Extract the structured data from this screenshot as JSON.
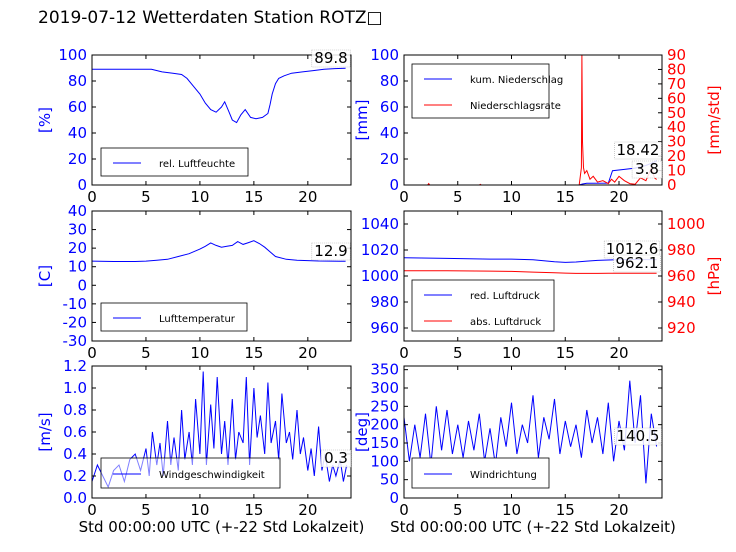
{
  "figure": {
    "title": "2019-07-12 Wetterdaten Station ROTZ□"
  },
  "chart_data": [
    {
      "type": "line",
      "id": "humidity",
      "ylabel": "[%]",
      "xlim": [
        0,
        24
      ],
      "ylim": [
        0,
        100
      ],
      "xticks": [
        0,
        5,
        10,
        15,
        20
      ],
      "yticks": [
        0,
        20,
        40,
        60,
        80,
        100
      ],
      "legend_position": "lower-left",
      "value_label": "89.8",
      "series": [
        {
          "name": "rel. Luftfeuchte",
          "color": "#0000ff",
          "x": [
            0,
            2,
            4,
            5.5,
            6.5,
            7.5,
            8.3,
            8.8,
            9.4,
            10,
            10.5,
            11,
            11.5,
            12,
            12.3,
            12.7,
            13,
            13.4,
            13.8,
            14.2,
            14.7,
            15.2,
            15.8,
            16.3,
            16.5,
            16.7,
            17,
            17.3,
            17.8,
            18.5,
            19.5,
            20.5,
            21.5,
            22.5,
            23.5
          ],
          "y": [
            89,
            89,
            89,
            89,
            87,
            86,
            85,
            82,
            76,
            70,
            63,
            58,
            56,
            60,
            64,
            56,
            50,
            48,
            54,
            58,
            52,
            51,
            52,
            55,
            62,
            70,
            78,
            82,
            84,
            86,
            87,
            88,
            89,
            89.5,
            89.8
          ]
        }
      ]
    },
    {
      "type": "line",
      "id": "precipitation",
      "ylabel": "[mm]",
      "y2label": "[mm/std]",
      "xlim": [
        0,
        24
      ],
      "ylim": [
        0,
        100
      ],
      "y2lim": [
        0,
        90
      ],
      "xticks": [
        0,
        5,
        10,
        15,
        20
      ],
      "yticks": [
        0,
        20,
        40,
        60,
        80,
        100
      ],
      "y2ticks": [
        0,
        10,
        20,
        30,
        40,
        50,
        60,
        70,
        80,
        90
      ],
      "legend_position": "upper-left",
      "value_labels": [
        "18.42",
        "3.8"
      ],
      "series": [
        {
          "name": "kum. Niederschlag",
          "axis": "left",
          "color": "#0000ff",
          "x": [
            0,
            16.3,
            16.6,
            17,
            19,
            19.4,
            20.5,
            21.5,
            22.5,
            23.5
          ],
          "y": [
            0,
            0,
            0.8,
            1.3,
            1.5,
            11,
            12,
            13,
            15,
            18.42
          ]
        },
        {
          "name": "Niederschlagsrate",
          "axis": "right",
          "color": "#ff0000",
          "x": [
            0,
            2.2,
            2.3,
            2.4,
            7,
            7.1,
            7.2,
            16.3,
            16.5,
            16.55,
            16.6,
            16.7,
            16.8,
            17,
            17.3,
            17.6,
            18,
            18.5,
            19,
            19.3,
            19.6,
            20,
            20.5,
            21,
            21.5,
            22,
            22.5,
            22.8,
            23,
            23.3,
            23.5
          ],
          "y": [
            0,
            0,
            1,
            0,
            0,
            0.5,
            0,
            0,
            12,
            90,
            30,
            12,
            8,
            10,
            4,
            6,
            2,
            3,
            1,
            4,
            2,
            6,
            3,
            1,
            0.5,
            5,
            3,
            8,
            12,
            5,
            3.8
          ]
        }
      ]
    },
    {
      "type": "line",
      "id": "temperature",
      "ylabel": "[C]",
      "xlim": [
        0,
        24
      ],
      "ylim": [
        -30,
        40
      ],
      "xticks": [
        0,
        5,
        10,
        15,
        20
      ],
      "yticks": [
        -30,
        -20,
        -10,
        0,
        10,
        20,
        30,
        40
      ],
      "legend_position": "lower-left",
      "value_label": "12.9",
      "series": [
        {
          "name": "Lufttemperatur",
          "color": "#0000ff",
          "x": [
            0,
            2,
            4,
            5,
            6,
            7,
            8,
            9,
            10,
            10.5,
            11,
            11.5,
            12,
            12.5,
            13,
            13.5,
            14,
            14.5,
            15,
            15.5,
            16,
            16.5,
            17,
            18,
            19,
            20,
            21,
            22,
            23,
            23.5
          ],
          "y": [
            13,
            12.8,
            12.8,
            13,
            13.5,
            14,
            15.5,
            17,
            19.5,
            21,
            22.8,
            21.5,
            20.5,
            21,
            21.5,
            23.5,
            22,
            23,
            24,
            22.5,
            20.5,
            18,
            15.5,
            14,
            13.5,
            13.3,
            13.1,
            13,
            12.9,
            12.9
          ]
        }
      ]
    },
    {
      "type": "line",
      "id": "pressure",
      "y2label": "[hPa]",
      "xlim": [
        0,
        24
      ],
      "ylim": [
        950,
        1050
      ],
      "y2lim": [
        910,
        1010
      ],
      "xticks": [
        0,
        5,
        10,
        15,
        20
      ],
      "yticks": [
        960,
        980,
        1000,
        1020,
        1040
      ],
      "y2ticks": [
        920,
        940,
        960,
        980,
        1000
      ],
      "legend_position": "lower-left",
      "value_labels": [
        "1012.6",
        "962.1"
      ],
      "series": [
        {
          "name": "red. Luftdruck",
          "axis": "left",
          "color": "#0000ff",
          "x": [
            0,
            4,
            8,
            10,
            12,
            14,
            15,
            16,
            17,
            18,
            19,
            20,
            21,
            22,
            23.5
          ],
          "y": [
            1014,
            1013.5,
            1013,
            1013,
            1012.5,
            1011,
            1010.5,
            1010.8,
            1011.5,
            1012,
            1012.3,
            1012.6,
            1012.7,
            1012.6,
            1012.6
          ]
        },
        {
          "name": "abs. Luftdruck",
          "axis": "right",
          "color": "#ff0000",
          "x": [
            0,
            4,
            8,
            10,
            12,
            14,
            15,
            16,
            17,
            18,
            19,
            20,
            21,
            22,
            23.5
          ],
          "y": [
            964,
            964,
            963.8,
            963.5,
            963,
            962.5,
            962.2,
            962,
            962,
            962,
            962.1,
            962.1,
            962.1,
            962.1,
            962.1
          ]
        }
      ]
    },
    {
      "type": "line",
      "id": "windspeed",
      "ylabel": "[m/s]",
      "xlabel": "Std 00:00:00 UTC (+-22 Std Lokalzeit)",
      "xlim": [
        0,
        24
      ],
      "ylim": [
        0,
        1.2
      ],
      "xticks": [
        0,
        5,
        10,
        15,
        20
      ],
      "yticks": [
        0,
        0.2,
        0.4,
        0.6,
        0.8,
        1.0,
        1.2
      ],
      "legend_position": "lower-left",
      "value_label": "0.3",
      "series": [
        {
          "name": "Windgeschwindigkeit",
          "color": "#0000ff",
          "x": [
            0,
            0.5,
            1,
            1.5,
            2,
            2.5,
            3,
            3.5,
            4,
            4.5,
            5,
            5.3,
            5.6,
            6,
            6.3,
            6.6,
            7,
            7.3,
            7.6,
            8,
            8.3,
            8.6,
            9,
            9.3,
            9.6,
            10,
            10.3,
            10.6,
            11,
            11.3,
            11.6,
            12,
            12.3,
            12.6,
            13,
            13.3,
            13.6,
            14,
            14.3,
            14.6,
            15,
            15.3,
            15.6,
            16,
            16.3,
            16.6,
            17,
            17.3,
            17.6,
            18,
            18.3,
            18.6,
            19,
            19.3,
            19.6,
            20,
            20.3,
            20.6,
            21,
            21.3,
            21.6,
            22,
            22.3,
            22.6,
            23,
            23.3,
            23.6
          ],
          "y": [
            0.15,
            0.3,
            0.2,
            0.1,
            0.25,
            0.3,
            0.15,
            0.35,
            0.4,
            0.25,
            0.45,
            0.2,
            0.6,
            0.3,
            0.5,
            0.2,
            0.7,
            0.3,
            0.55,
            0.25,
            0.8,
            0.35,
            0.6,
            0.3,
            0.9,
            0.4,
            1.15,
            0.3,
            0.85,
            0.45,
            1.1,
            0.4,
            0.7,
            0.3,
            0.9,
            0.35,
            0.6,
            0.5,
            1.1,
            0.3,
            1.0,
            0.55,
            0.75,
            0.4,
            1.05,
            0.5,
            0.7,
            0.35,
            0.95,
            0.5,
            0.6,
            0.35,
            0.8,
            0.4,
            0.55,
            0.25,
            0.45,
            0.2,
            0.65,
            0.25,
            0.4,
            0.15,
            0.3,
            0.2,
            0.35,
            0.15,
            0.3
          ]
        }
      ]
    },
    {
      "type": "line",
      "id": "winddirection",
      "ylabel": "[deg]",
      "xlabel": "Std 00:00:00 UTC (+-22 Std Lokalzeit)",
      "xlim": [
        0,
        24
      ],
      "ylim": [
        0,
        360
      ],
      "xticks": [
        0,
        5,
        10,
        15,
        20
      ],
      "yticks": [
        0,
        50,
        100,
        150,
        200,
        250,
        300,
        350
      ],
      "legend_position": "lower-left",
      "value_label": "140.5",
      "series": [
        {
          "name": "Windrichtung",
          "color": "#0000ff",
          "x": [
            0,
            0.5,
            1,
            1.5,
            2,
            2.5,
            3,
            3.5,
            4,
            4.5,
            5,
            5.5,
            6,
            6.5,
            7,
            7.5,
            8,
            8.5,
            9,
            9.5,
            10,
            10.5,
            11,
            11.5,
            12,
            12.5,
            13,
            13.5,
            14,
            14.5,
            15,
            15.5,
            16,
            16.5,
            17,
            17.5,
            18,
            18.5,
            19,
            19.5,
            20,
            20.5,
            21,
            21.5,
            22,
            22.5,
            23,
            23.5
          ],
          "y": [
            220,
            100,
            200,
            110,
            230,
            90,
            250,
            130,
            240,
            120,
            200,
            110,
            210,
            130,
            230,
            100,
            190,
            90,
            220,
            140,
            260,
            120,
            200,
            150,
            280,
            110,
            220,
            160,
            270,
            120,
            210,
            140,
            200,
            110,
            240,
            150,
            220,
            120,
            260,
            100,
            210,
            130,
            320,
            150,
            280,
            40,
            230,
            140.5
          ]
        }
      ]
    }
  ]
}
